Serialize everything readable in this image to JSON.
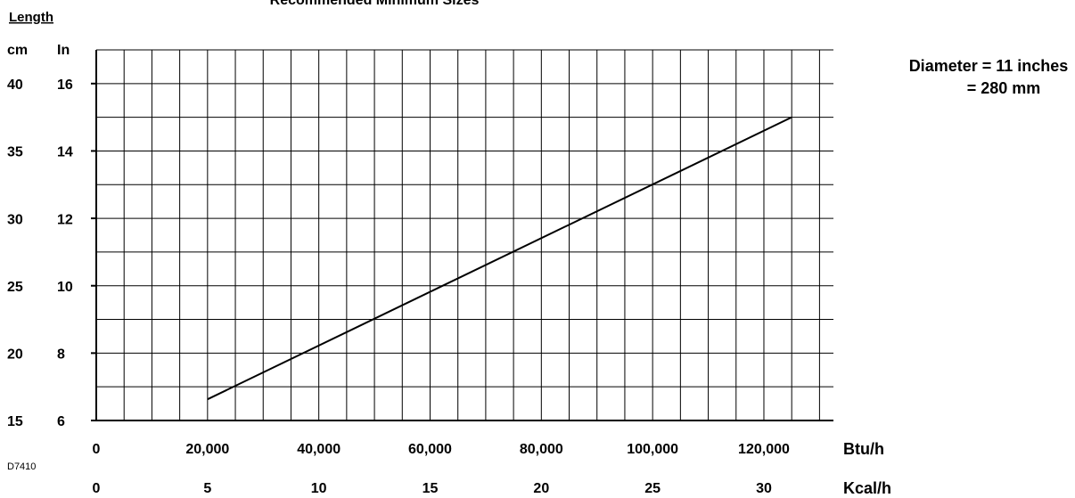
{
  "chart_data": {
    "type": "line",
    "title": "Recommended Minimum Sizes",
    "y_heading": "Length",
    "ylabel": "In",
    "y2label": "cm",
    "xlabel": "Btu/h",
    "x2label": "Kcal/h",
    "code": "D7410",
    "annotations": [
      "Diameter = 11 inches",
      "= 280 mm"
    ],
    "x": [
      20000,
      125000
    ],
    "series": [
      {
        "values": [
          6.63,
          15
        ],
        "color": "#000000"
      }
    ],
    "xlim": [
      0,
      132500
    ],
    "xticks": [
      0,
      {
        "value": 20000,
        "label": "20,000"
      },
      {
        "value": 40000,
        "label": "40,000"
      },
      {
        "value": 60000,
        "label": "60,000"
      },
      {
        "value": 80000,
        "label": "80,000"
      },
      {
        "value": 100000,
        "label": "100,000"
      },
      {
        "value": 120000,
        "label": "120,000"
      }
    ],
    "xgrid": [
      5000,
      10000,
      15000,
      20000,
      25000,
      30000,
      35000,
      40000,
      45000,
      50000,
      55000,
      60000,
      65000,
      70000,
      75000,
      80000,
      85000,
      90000,
      95000,
      100000,
      105000,
      110000,
      115000,
      120000,
      125000,
      130000
    ],
    "x2lim": [
      0,
      33.125
    ],
    "x2ticks": [
      0,
      5,
      10,
      15,
      20,
      25,
      30
    ],
    "ylim": [
      6,
      17
    ],
    "yticks": [
      6,
      8,
      10,
      12,
      14,
      16
    ],
    "ygrid": [
      7,
      8,
      9,
      10,
      11,
      12,
      13,
      14,
      15,
      16,
      17
    ],
    "y2lim": [
      15.24,
      43.18
    ],
    "y2ticks": [
      {
        "value": 15.24,
        "label": "15"
      },
      {
        "value": 20.32,
        "label": "20"
      },
      {
        "value": 25.4,
        "label": "25"
      },
      {
        "value": 30.48,
        "label": "30"
      },
      {
        "value": 35.56,
        "label": "35"
      },
      {
        "value": 40.64,
        "label": "40"
      }
    ],
    "grid": true
  }
}
